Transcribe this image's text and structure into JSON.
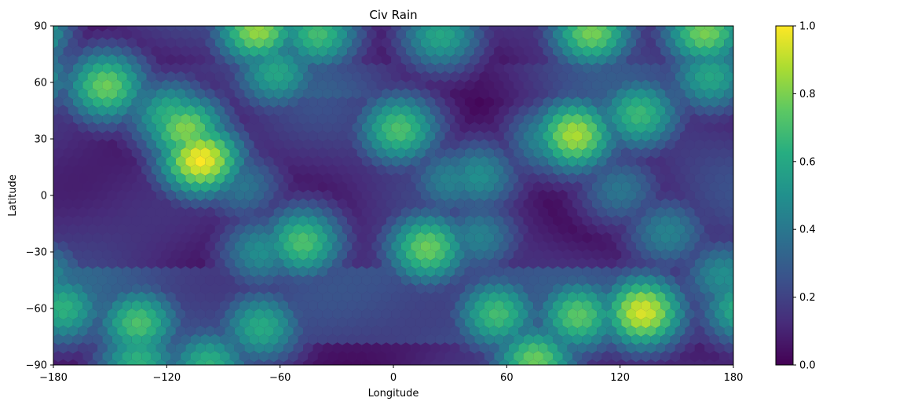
{
  "chart_data": {
    "type": "heatmap",
    "title": "Civ Rain",
    "xlabel": "Longitude",
    "ylabel": "Latitude",
    "xlim": [
      -180,
      180
    ],
    "ylim": [
      -90,
      90
    ],
    "xticks": [
      -180,
      -120,
      -60,
      0,
      60,
      120,
      180
    ],
    "yticks": [
      -90,
      -60,
      -30,
      0,
      30,
      60,
      90
    ],
    "colorbar": {
      "min": 0.0,
      "max": 1.0,
      "ticks": [
        0.0,
        0.2,
        0.4,
        0.6,
        0.8,
        1.0
      ],
      "tick_labels": [
        "0.0",
        "0.2",
        "0.4",
        "0.6",
        "0.8",
        "1.0"
      ],
      "colormap": "viridis"
    },
    "grid": false,
    "hotspots": [
      {
        "lon": -102,
        "lat": 19,
        "value": 1.0
      },
      {
        "lon": -110,
        "lat": 35,
        "value": 0.82
      },
      {
        "lon": -118,
        "lat": 42,
        "value": 0.66
      },
      {
        "lon": -152,
        "lat": 58,
        "value": 0.78
      },
      {
        "lon": -72,
        "lat": 88,
        "value": 0.85
      },
      {
        "lon": -40,
        "lat": 86,
        "value": 0.7
      },
      {
        "lon": -48,
        "lat": -25,
        "value": 0.72
      },
      {
        "lon": -70,
        "lat": -30,
        "value": 0.5
      },
      {
        "lon": 18,
        "lat": -28,
        "value": 0.78
      },
      {
        "lon": 3,
        "lat": 35,
        "value": 0.72
      },
      {
        "lon": 45,
        "lat": 10,
        "value": 0.5
      },
      {
        "lon": 96,
        "lat": 32,
        "value": 0.88
      },
      {
        "lon": 132,
        "lat": -62,
        "value": 0.95
      },
      {
        "lon": 98,
        "lat": -64,
        "value": 0.75
      },
      {
        "lon": 55,
        "lat": -63,
        "value": 0.7
      },
      {
        "lon": -135,
        "lat": -68,
        "value": 0.72
      },
      {
        "lon": -70,
        "lat": -70,
        "value": 0.62
      },
      {
        "lon": 75,
        "lat": -88,
        "value": 0.78
      },
      {
        "lon": 130,
        "lat": 43,
        "value": 0.68
      },
      {
        "lon": 165,
        "lat": 87,
        "value": 0.8
      },
      {
        "lon": 105,
        "lat": 87,
        "value": 0.8
      },
      {
        "lon": -175,
        "lat": -60,
        "value": 0.65
      },
      {
        "lon": 175,
        "lat": -43,
        "value": 0.5
      },
      {
        "lon": 25,
        "lat": 85,
        "value": 0.6
      },
      {
        "lon": -62,
        "lat": 65,
        "value": 0.6
      },
      {
        "lon": -98,
        "lat": -90,
        "value": 0.65
      },
      {
        "lon": -135,
        "lat": -88,
        "value": 0.65
      },
      {
        "lon": 45,
        "lat": -22,
        "value": 0.45
      },
      {
        "lon": 82,
        "lat": 30,
        "value": 0.5
      },
      {
        "lon": 145,
        "lat": -20,
        "value": 0.45
      },
      {
        "lon": 120,
        "lat": 3,
        "value": 0.4
      },
      {
        "lon": 168,
        "lat": 63,
        "value": 0.6
      },
      {
        "lon": 30,
        "lat": 8,
        "value": 0.45
      },
      {
        "lon": -80,
        "lat": 5,
        "value": 0.4
      }
    ]
  }
}
